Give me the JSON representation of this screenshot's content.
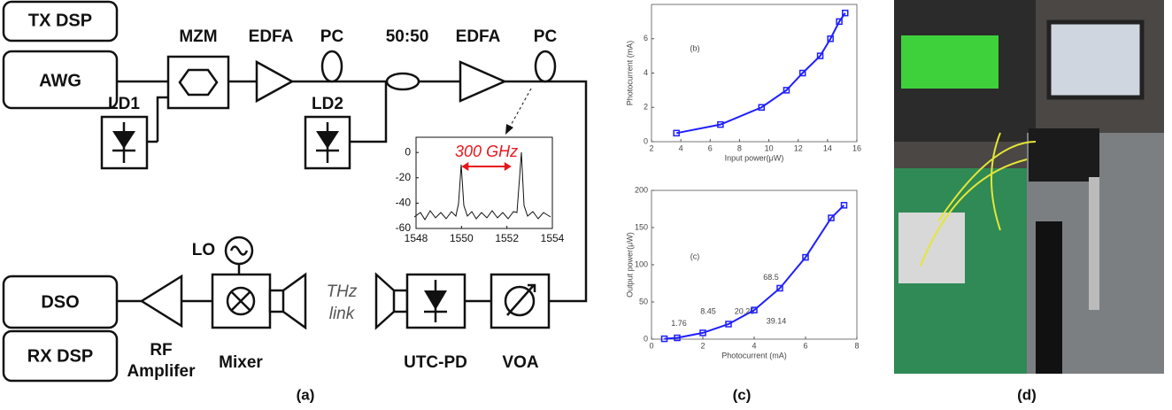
{
  "diagram": {
    "tx_dsp": "TX DSP",
    "awg": "AWG",
    "mzm": "MZM",
    "edfa1": "EDFA",
    "pc1": "PC",
    "coupler": "50:50",
    "edfa2": "EDFA",
    "pc2": "PC",
    "ld1": "LD1",
    "ld2": "LD2",
    "lo": "LO",
    "dso": "DSO",
    "rx_dsp": "RX DSP",
    "rf_amp": [
      "RF",
      "Amplifer"
    ],
    "mixer": "Mixer",
    "thz_link": [
      "THz",
      "link"
    ],
    "utc_pd": "UTC-PD",
    "voa": "VOA"
  },
  "captions": [
    "(a)",
    "(c)",
    "(d)"
  ],
  "chart_data": [
    {
      "type": "line",
      "label": "(b)",
      "xlabel": "Input power(μW)",
      "ylabel": "Photocurrent (mA)",
      "x": [
        3.7,
        6.7,
        9.5,
        11.2,
        12.3,
        13.5,
        14.2,
        14.8,
        15.2
      ],
      "series": [
        {
          "color": "#1f1fff",
          "values": [
            0.5,
            1,
            2,
            3,
            4,
            5,
            6,
            7,
            7.5
          ]
        }
      ],
      "xlim": [
        2,
        16
      ],
      "ylim": [
        0,
        8
      ],
      "xticks": [
        2,
        4,
        6,
        8,
        10,
        12,
        14,
        16
      ],
      "yticks": [
        0,
        2,
        4,
        6
      ]
    },
    {
      "type": "line",
      "label": "(c)",
      "xlabel": "Photocurrent (mA)",
      "ylabel": "Output power(μW)",
      "x": [
        0.5,
        1,
        2,
        3,
        4,
        5,
        6,
        7,
        7.5
      ],
      "series": [
        {
          "color": "#1f1fff",
          "values": [
            0.5,
            1.76,
            8.45,
            20.25,
            39.14,
            68.5,
            110,
            163,
            180
          ],
          "value_labels": [
            null,
            "1.76",
            "8.45",
            "20.25",
            "39.14",
            "68.5",
            null,
            null,
            null
          ]
        }
      ],
      "xlim": [
        0,
        8
      ],
      "ylim": [
        0,
        200
      ],
      "xticks": [
        0,
        2,
        4,
        6,
        8
      ],
      "yticks": [
        0,
        50,
        100,
        150,
        200
      ]
    },
    {
      "type": "spectrum",
      "annotation": "300 GHz",
      "annotation_color": "#e8161c",
      "xlim": [
        1548,
        1554
      ],
      "ylim": [
        -60,
        12
      ],
      "xticks": [
        1548,
        1550,
        1552,
        1554
      ],
      "yticks": [
        0,
        -20,
        -40,
        -60
      ]
    }
  ]
}
